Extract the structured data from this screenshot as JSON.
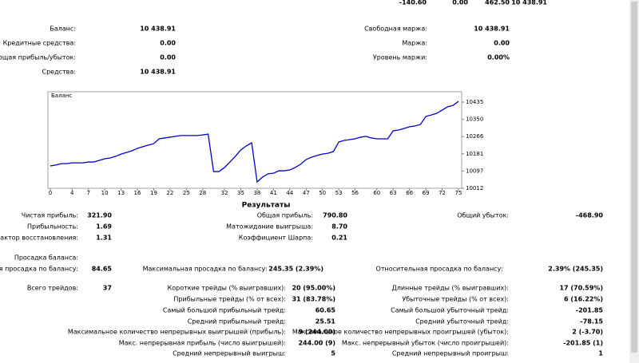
{
  "account": {
    "top_row": [
      "-140.60",
      "0.00",
      "462.50",
      "10 438.91"
    ],
    "left": [
      {
        "label": "Баланс:",
        "value": "10 438.91"
      },
      {
        "label": "Кредитные средства:",
        "value": "0.00"
      },
      {
        "label": "лавающая прибыль/убыток:",
        "value": "0.00"
      },
      {
        "label": "Средства:",
        "value": "10 438.91"
      }
    ],
    "right": [
      {
        "label": "Свободная маржа:",
        "value": "10 438.91"
      },
      {
        "label": "Маржа:",
        "value": "0.00"
      },
      {
        "label": "Уровень маржи:",
        "value": "0.00%"
      }
    ]
  },
  "balance_chart": {
    "type": "line",
    "label": "Баланс",
    "color": "#0000c8",
    "x": [
      0,
      1,
      2,
      3,
      4,
      5,
      6,
      7,
      8,
      9,
      10,
      11,
      12,
      13,
      14,
      15,
      16,
      17,
      18,
      19,
      20,
      21,
      22,
      23,
      24,
      25,
      26,
      27,
      28,
      29,
      30,
      31,
      32,
      33,
      34,
      35,
      36,
      37,
      38,
      39,
      40,
      41,
      42,
      43,
      44,
      45,
      46,
      47,
      48,
      49,
      50,
      51,
      52,
      53,
      54,
      55,
      56,
      57,
      58,
      59,
      60,
      61,
      62,
      63,
      64,
      65,
      66,
      67,
      68,
      69,
      70,
      71,
      72,
      73,
      74,
      75
    ],
    "values": [
      10122,
      10126,
      10133,
      10133,
      10137,
      10137,
      10137,
      10141,
      10141,
      10149,
      10157,
      10161,
      10169,
      10180,
      10188,
      10196,
      10208,
      10216,
      10224,
      10231,
      10255,
      10259,
      10263,
      10267,
      10271,
      10271,
      10271,
      10271,
      10274,
      10278,
      10094,
      10094,
      10114,
      10141,
      10169,
      10200,
      10220,
      10235,
      10043,
      10067,
      10083,
      10086,
      10098,
      10098,
      10102,
      10114,
      10130,
      10153,
      10165,
      10173,
      10180,
      10184,
      10192,
      10239,
      10247,
      10251,
      10255,
      10263,
      10267,
      10259,
      10255,
      10255,
      10255,
      10294,
      10298,
      10306,
      10314,
      10318,
      10325,
      10365,
      10372,
      10380,
      10396,
      10412,
      10419,
      10438.91
    ],
    "xlim": [
      0,
      75
    ],
    "xticks": [
      0,
      4,
      7,
      10,
      13,
      16,
      19,
      22,
      25,
      28,
      32,
      35,
      38,
      41,
      44,
      47,
      50,
      53,
      56,
      60,
      63,
      66,
      69,
      72,
      75
    ],
    "ylim": [
      10012,
      10486
    ],
    "yticks": [
      10012,
      10097,
      10181,
      10266,
      10350,
      10435
    ]
  },
  "results": {
    "title": "Результаты",
    "items": [
      {
        "label": "Чистая прибыль:",
        "value": "321.90"
      },
      {
        "label": "Общая прибыль:",
        "value": "790.80"
      },
      {
        "label": "Общий убыток:",
        "value": "-468.90"
      },
      {
        "label": "Прибыльность:",
        "value": "1.69"
      },
      {
        "label": "Матожидание выигрыша:",
        "value": "8.70"
      },
      {
        "label": "Фактор восстановления:",
        "value": "1.31"
      },
      {
        "label": "Коэффициент Шарпа:",
        "value": "0.21"
      },
      {
        "label": "Просадка баланса:"
      },
      {
        "label": "ютная просадка по балансу:",
        "value": "84.65"
      },
      {
        "label": "Максимальная просадка по балансу:",
        "value": "245.35 (2.39%)"
      },
      {
        "label": "Относительная просадка по балансу:",
        "value": "2.39% (245.35)"
      },
      {
        "label": "Всего трейдов:",
        "value": "37"
      },
      {
        "label": "Короткие трейды (% выигравших):",
        "value": "20 (95.00%)"
      },
      {
        "label": "Длинные трейды (% выигравших):",
        "value": "17 (70.59%)"
      },
      {
        "label": "Прибыльные трейды (% от всех):",
        "value": "31 (83.78%)"
      },
      {
        "label": "Убыточные трейды (% от всех):",
        "value": "6 (16.22%)"
      },
      {
        "label": "Самый большой прибыльный трейд:",
        "value": "60.65"
      },
      {
        "label": "Самый большой убыточный трейд:",
        "value": "-201.85"
      },
      {
        "label": "Средний прибыльный трейд:",
        "value": "25.51"
      },
      {
        "label": "Средний убыточный трейд:",
        "value": "-78.15"
      },
      {
        "label": "Максимальное количество непрерывных выигрышей (прибыль):",
        "value": "9 (244.00)"
      },
      {
        "label": "Максимальное количество непрерывных проигрышей (убыток):",
        "value": "2 (-3.70)"
      },
      {
        "label": "Макс. непрерывная прибыль (число выигрышей):",
        "value": "244.00 (9)"
      },
      {
        "label": "Макс. непрерывный убыток (число проигрышей):",
        "value": "-201.85 (1)"
      },
      {
        "label": "Средний непрерывный выигрыш:",
        "value": "5"
      },
      {
        "label": "Средний непрерывный проигрыш:",
        "value": "1"
      }
    ]
  }
}
